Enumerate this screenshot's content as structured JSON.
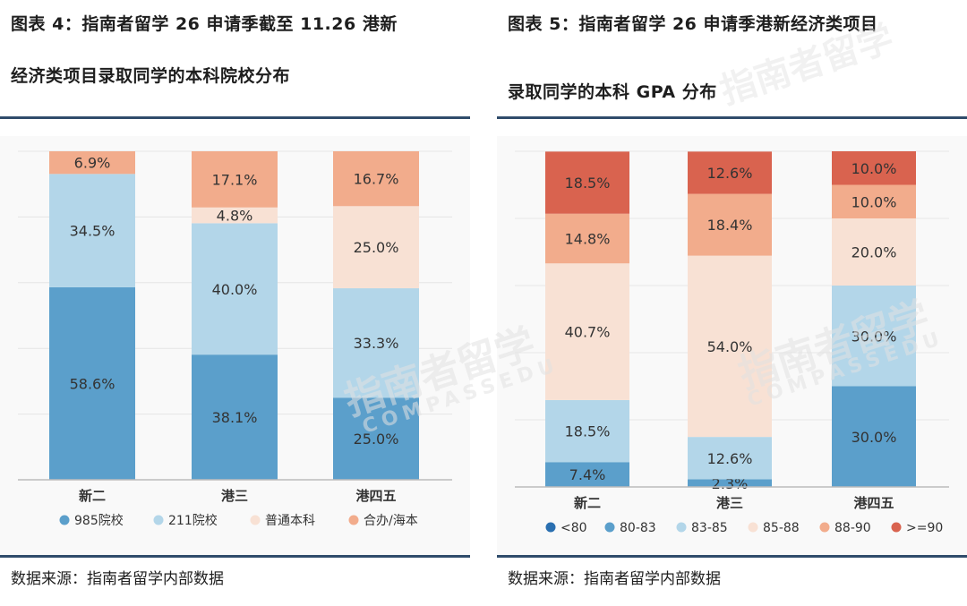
{
  "left": {
    "title_line1": "图表 4：指南者留学 26 申请季截至 11.26 港新",
    "title_line2": "经济类项目录取同学的本科院校分布",
    "source": "数据来源：指南者留学内部数据",
    "chart_data": {
      "type": "bar",
      "stacked": true,
      "normalized": true,
      "categories": [
        "新二",
        "港三",
        "港四五"
      ],
      "series": [
        {
          "name": "985院校",
          "color": "#5b9fcb",
          "values": [
            58.6,
            38.1,
            25.0
          ],
          "labels": [
            "58.6%",
            "38.1%",
            "25.0%"
          ]
        },
        {
          "name": "211院校",
          "color": "#b3d6e9",
          "values": [
            34.5,
            40.0,
            33.3
          ],
          "labels": [
            "34.5%",
            "40.0%",
            "33.3%"
          ]
        },
        {
          "name": "普通本科",
          "color": "#f8e1d4",
          "values": [
            0,
            4.8,
            25.0
          ],
          "labels": [
            "",
            "4.8%",
            "25.0%"
          ]
        },
        {
          "name": "合办/海本",
          "color": "#f2ac8c",
          "values": [
            6.9,
            17.1,
            16.7
          ],
          "labels": [
            "6.9%",
            "17.1%",
            "16.7%"
          ]
        }
      ],
      "ylim": [
        0,
        100
      ],
      "legend": "bottom"
    }
  },
  "right": {
    "title_line1": "图表 5：指南者留学 26 申请季港新经济类项目",
    "title_line2": "录取同学的本科 GPA 分布",
    "source": "数据来源：指南者留学内部数据",
    "chart_data": {
      "type": "bar",
      "stacked": true,
      "normalized": true,
      "categories": [
        "新二",
        "港三",
        "港四五"
      ],
      "series": [
        {
          "name": "<80",
          "color": "#2a6fb0",
          "values": [
            0,
            0,
            0
          ],
          "labels": [
            "",
            "",
            ""
          ]
        },
        {
          "name": "80-83",
          "color": "#5b9fcb",
          "values": [
            7.4,
            2.3,
            30.0
          ],
          "labels": [
            "7.4%",
            "2.3%",
            "30.0%"
          ]
        },
        {
          "name": "83-85",
          "color": "#b3d6e9",
          "values": [
            18.5,
            12.6,
            30.0
          ],
          "labels": [
            "18.5%",
            "12.6%",
            "30.0%"
          ]
        },
        {
          "name": "85-88",
          "color": "#f8e1d4",
          "values": [
            40.7,
            54.0,
            20.0
          ],
          "labels": [
            "40.7%",
            "54.0%",
            "20.0%"
          ]
        },
        {
          "name": "88-90",
          "color": "#f2ac8c",
          "values": [
            14.8,
            18.4,
            10.0
          ],
          "labels": [
            "14.8%",
            "18.4%",
            "10.0%"
          ]
        },
        {
          "name": ">=90",
          "color": "#d9634f",
          "values": [
            18.5,
            12.6,
            10.0
          ],
          "labels": [
            "18.5%",
            "12.6%",
            "10.0%"
          ]
        }
      ],
      "ylim": [
        0,
        100
      ],
      "legend": "bottom"
    }
  },
  "watermark": {
    "brand": "指南者留学",
    "latin": "COMPASSEDU"
  }
}
